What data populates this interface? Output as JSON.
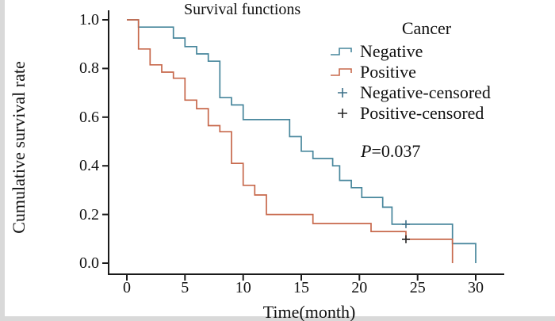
{
  "title": "Survival functions",
  "axes": {
    "x_label": "Time(month)",
    "y_label": "Cumulative survival rate"
  },
  "legend": {
    "title": "Cancer",
    "items": [
      {
        "label": "Negative",
        "symbol": "step-line",
        "color": "#47869c"
      },
      {
        "label": "Positive",
        "symbol": "step-line",
        "color": "#c7684b"
      },
      {
        "label": "Negative-censored",
        "symbol": "plus",
        "color": "#3d7089"
      },
      {
        "label": "Positive-censored",
        "symbol": "plus",
        "color": "#262626"
      }
    ]
  },
  "annotation": {
    "p_italic": "P",
    "p_rest": "=0.037"
  },
  "chart_data": {
    "type": "line",
    "variant": "kaplan_meier_step",
    "title": "Survival functions",
    "xlabel": "Time(month)",
    "ylabel": "Cumulative survival rate",
    "xlim": [
      0,
      30
    ],
    "ylim": [
      0.0,
      1.0
    ],
    "grid": false,
    "legend_position": "upper-right-inside",
    "p_value": 0.037,
    "xticks": [
      {
        "label": "0",
        "value": 0
      },
      {
        "label": "5",
        "value": 5
      },
      {
        "label": "10",
        "value": 10
      },
      {
        "label": "15",
        "value": 15
      },
      {
        "label": "20",
        "value": 20
      },
      {
        "label": "25",
        "value": 25
      },
      {
        "label": "30",
        "value": 30
      }
    ],
    "yticks": [
      {
        "label": "0.0",
        "value": 0.0
      },
      {
        "label": "0.2",
        "value": 0.2
      },
      {
        "label": "0.4",
        "value": 0.4
      },
      {
        "label": "0.6",
        "value": 0.6
      },
      {
        "label": "0.8",
        "value": 0.8
      },
      {
        "label": "1.0",
        "value": 1.0
      }
    ],
    "series": [
      {
        "name": "Negative",
        "color": "#47869c",
        "censor_color": "#3d7089",
        "start": [
          0,
          1.0
        ],
        "steps": [
          [
            1,
            0.97
          ],
          [
            4,
            0.925
          ],
          [
            5,
            0.89
          ],
          [
            6,
            0.86
          ],
          [
            7,
            0.83
          ],
          [
            8,
            0.68
          ],
          [
            9,
            0.65
          ],
          [
            10,
            0.59
          ],
          [
            14,
            0.52
          ],
          [
            15,
            0.46
          ],
          [
            16,
            0.43
          ],
          [
            17.7,
            0.4
          ],
          [
            18.3,
            0.34
          ],
          [
            19.3,
            0.31
          ],
          [
            20.2,
            0.27
          ],
          [
            22,
            0.23
          ],
          [
            22.8,
            0.16
          ],
          [
            28,
            0.08
          ],
          [
            30,
            0.0
          ]
        ],
        "censored": [
          [
            24,
            0.16
          ]
        ]
      },
      {
        "name": "Positive",
        "color": "#c7684b",
        "censor_color": "#262626",
        "start": [
          0,
          1.0
        ],
        "steps": [
          [
            1,
            0.88
          ],
          [
            2,
            0.815
          ],
          [
            3,
            0.785
          ],
          [
            4,
            0.76
          ],
          [
            5,
            0.67
          ],
          [
            6,
            0.635
          ],
          [
            7,
            0.565
          ],
          [
            8,
            0.54
          ],
          [
            9,
            0.41
          ],
          [
            10,
            0.32
          ],
          [
            11,
            0.28
          ],
          [
            12,
            0.2
          ],
          [
            16,
            0.163
          ],
          [
            21,
            0.13
          ],
          [
            24,
            0.098
          ],
          [
            28,
            0.0
          ]
        ],
        "censored": [
          [
            24,
            0.098
          ]
        ]
      }
    ]
  }
}
